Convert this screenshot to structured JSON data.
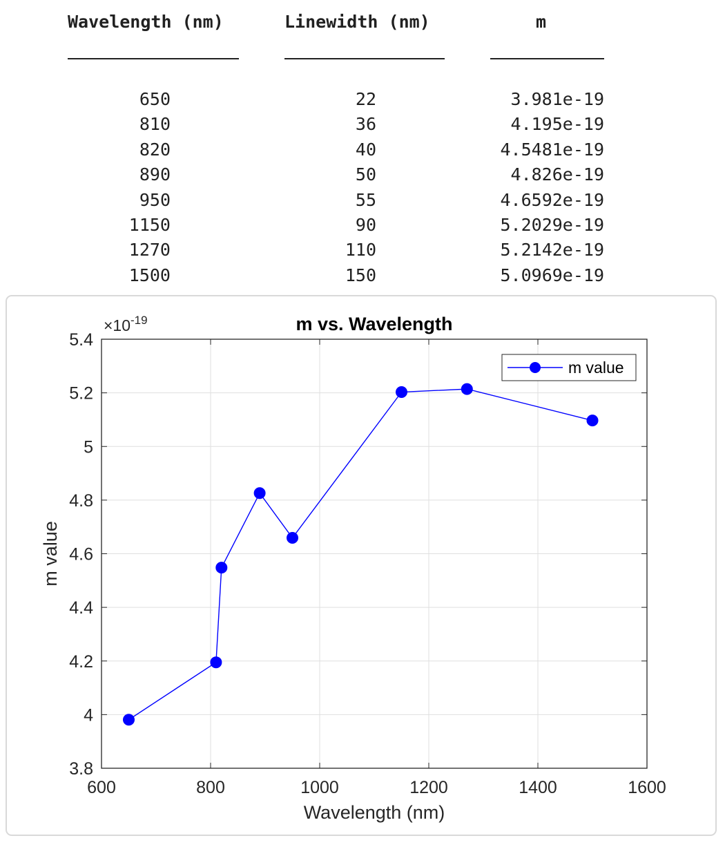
{
  "table": {
    "headers": [
      "Wavelength (nm)",
      "Linewidth (nm)",
      "m"
    ],
    "underlines": [
      "_______________",
      "______________",
      "__________"
    ],
    "rows": [
      [
        "650",
        "22",
        "3.981e-19"
      ],
      [
        "810",
        "36",
        "4.195e-19"
      ],
      [
        "820",
        "40",
        "4.5481e-19"
      ],
      [
        "890",
        "50",
        "4.826e-19"
      ],
      [
        "950",
        "55",
        "4.6592e-19"
      ],
      [
        "1150",
        "90",
        "5.2029e-19"
      ],
      [
        "1270",
        "110",
        "5.2142e-19"
      ],
      [
        "1500",
        "150",
        "5.0969e-19"
      ]
    ]
  },
  "chart_data": {
    "type": "line",
    "title": "m vs. Wavelength",
    "xlabel": "Wavelength (nm)",
    "ylabel": "m value",
    "y_exponent_label": "×10",
    "y_exponent_power": "-19",
    "xlim": [
      600,
      1600
    ],
    "ylim": [
      3.8,
      5.4
    ],
    "xticks": [
      600,
      800,
      1000,
      1200,
      1400,
      1600
    ],
    "xtick_labels": [
      "600",
      "800",
      "1000",
      "1200",
      "1400",
      "1600"
    ],
    "yticks": [
      3.8,
      4.0,
      4.2,
      4.4,
      4.6,
      4.8,
      5.0,
      5.2,
      5.4
    ],
    "ytick_labels": [
      "3.8",
      "4",
      "4.2",
      "4.4",
      "4.6",
      "4.8",
      "5",
      "5.2",
      "5.4"
    ],
    "grid": true,
    "legend_position": "top-right",
    "series": [
      {
        "name": "m value",
        "color": "#0000ff",
        "marker": "filled-circle",
        "x": [
          650,
          810,
          820,
          890,
          950,
          1150,
          1270,
          1500
        ],
        "y": [
          3.981,
          4.195,
          4.5481,
          4.826,
          4.6592,
          5.2029,
          5.2142,
          5.0969
        ]
      }
    ]
  }
}
